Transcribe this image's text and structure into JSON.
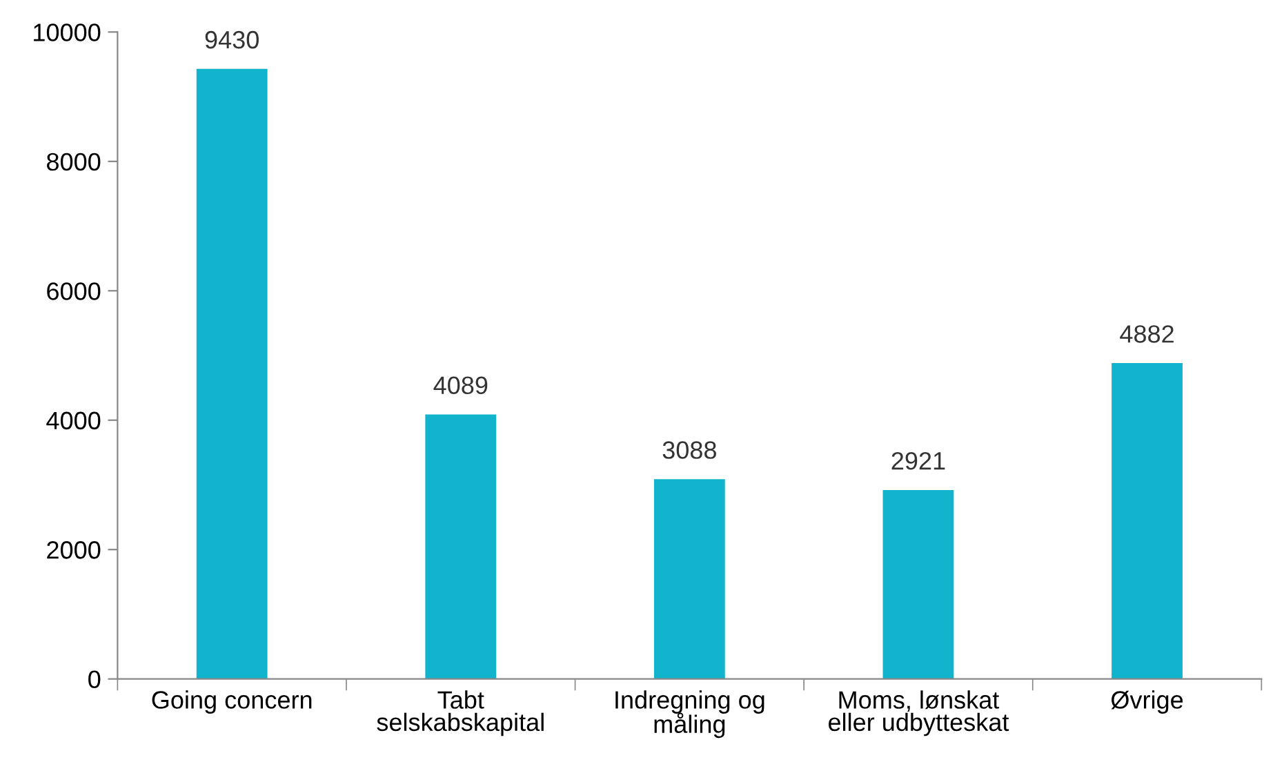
{
  "chart_data": {
    "type": "bar",
    "categories": [
      "Going concern",
      "Tabt\nselskabskapital",
      "Indregning og\nmåling",
      "Moms, lønskat\neller udbytteskat",
      "Øvrige"
    ],
    "values": [
      9430,
      4089,
      3088,
      2921,
      4882
    ],
    "color": "#12b3cc",
    "ylim": [
      0,
      10000
    ],
    "yticks": [
      0,
      2000,
      4000,
      6000,
      8000,
      10000
    ],
    "data_labels": true,
    "grid": false,
    "legend": false
  }
}
